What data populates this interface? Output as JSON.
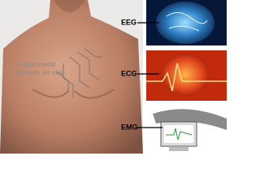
{
  "annotation": {
    "lines": [
      "Liquid metal",
      "circuits on skin"
    ]
  },
  "labels": [
    "EEG",
    "ECG",
    "EMG"
  ]
}
